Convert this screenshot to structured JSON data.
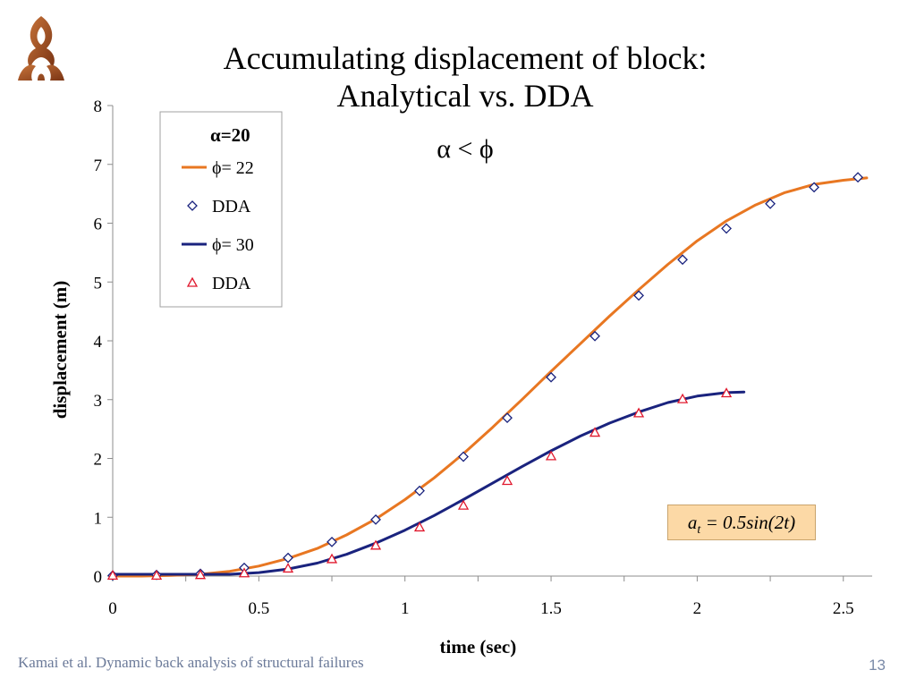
{
  "slide": {
    "title_line1": "Accumulating displacement of block:",
    "title_line2": "Analytical vs. DDA",
    "subtitle": "α < ϕ",
    "formula_prefix": "a",
    "formula_sub": "t",
    "formula_rest": " = 0.5sin(2t)",
    "footer": "Kamai et al. Dynamic back analysis of structural failures",
    "page_number": "13"
  },
  "colors": {
    "orange": "#e87722",
    "navy": "#1a237e",
    "dda_blue": "#1a237e",
    "dda_red": "#e0182d"
  },
  "chart_data": {
    "type": "line",
    "xlabel": "time (sec)",
    "ylabel": "displacement (m)",
    "xlim": [
      0,
      2.6
    ],
    "ylim": [
      0,
      8
    ],
    "xticks": [
      0,
      0.5,
      1,
      1.5,
      2,
      2.5
    ],
    "yticks": [
      0,
      1,
      2,
      3,
      4,
      5,
      6,
      7,
      8
    ],
    "grid": false,
    "legend": {
      "placement": "top-left",
      "header": "α=20"
    },
    "series": [
      {
        "name": "ϕ= 22",
        "kind": "line",
        "color": "#e87722",
        "x": [
          0,
          0.1,
          0.2,
          0.3,
          0.4,
          0.5,
          0.6,
          0.7,
          0.8,
          0.9,
          1.0,
          1.1,
          1.2,
          1.3,
          1.4,
          1.5,
          1.6,
          1.7,
          1.8,
          1.9,
          2.0,
          2.1,
          2.2,
          2.3,
          2.4,
          2.5,
          2.58
        ],
        "y": [
          0.0,
          0.0,
          0.01,
          0.03,
          0.08,
          0.17,
          0.3,
          0.47,
          0.7,
          0.97,
          1.3,
          1.67,
          2.08,
          2.53,
          3.0,
          3.48,
          3.95,
          4.42,
          4.87,
          5.3,
          5.7,
          6.04,
          6.31,
          6.52,
          6.66,
          6.73,
          6.77
        ]
      },
      {
        "name": "DDA",
        "kind": "marker",
        "marker": "diamond",
        "color": "#1a237e",
        "x": [
          0,
          0.15,
          0.3,
          0.45,
          0.6,
          0.75,
          0.9,
          1.05,
          1.2,
          1.35,
          1.5,
          1.65,
          1.8,
          1.95,
          2.1,
          2.25,
          2.4,
          2.55
        ],
        "y": [
          0.01,
          0.02,
          0.04,
          0.14,
          0.31,
          0.58,
          0.96,
          1.45,
          2.03,
          2.69,
          3.38,
          4.08,
          4.77,
          5.38,
          5.91,
          6.33,
          6.61,
          6.78
        ]
      },
      {
        "name": "ϕ= 30",
        "kind": "line",
        "color": "#1a237e",
        "x": [
          0,
          0.1,
          0.2,
          0.3,
          0.4,
          0.5,
          0.6,
          0.7,
          0.8,
          0.9,
          1.0,
          1.1,
          1.2,
          1.3,
          1.4,
          1.5,
          1.6,
          1.7,
          1.8,
          1.9,
          2.0,
          2.1,
          2.16
        ],
        "y": [
          0.03,
          0.03,
          0.03,
          0.03,
          0.03,
          0.06,
          0.12,
          0.22,
          0.37,
          0.56,
          0.78,
          1.03,
          1.3,
          1.58,
          1.86,
          2.13,
          2.38,
          2.6,
          2.79,
          2.95,
          3.06,
          3.12,
          3.13
        ]
      },
      {
        "name": "DDA",
        "kind": "marker",
        "marker": "triangle",
        "color": "#e0182d",
        "x": [
          0,
          0.15,
          0.3,
          0.45,
          0.6,
          0.75,
          0.9,
          1.05,
          1.2,
          1.35,
          1.5,
          1.65,
          1.8,
          1.95,
          2.1
        ],
        "y": [
          0.01,
          0.01,
          0.02,
          0.05,
          0.13,
          0.29,
          0.52,
          0.83,
          1.2,
          1.62,
          2.04,
          2.44,
          2.77,
          3.01,
          3.11
        ]
      }
    ]
  }
}
